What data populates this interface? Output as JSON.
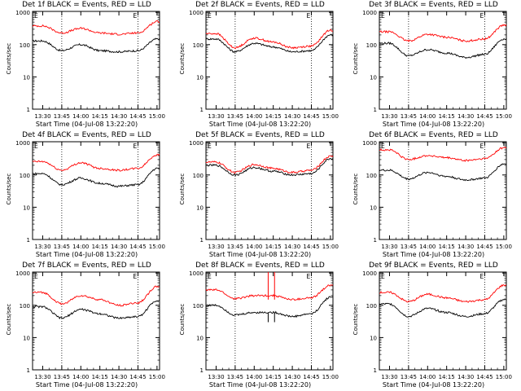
{
  "layout_title": "",
  "panel_ylabel": "Counts/sec",
  "panel_xlabel": "Start Time (04-Jul-08 13:22:20)",
  "x_ticks": [
    "13:30",
    "13:45",
    "14:00",
    "14:15",
    "14:30",
    "14:45",
    "15:00"
  ],
  "y_ticks": [
    "1",
    "10",
    "100",
    "1000"
  ],
  "marker_labels": [
    "E",
    "E"
  ],
  "colors": {
    "events": "#000000",
    "lld": "#ff0000"
  },
  "chart_data": [
    {
      "type": "line",
      "title": "Det 1f BLACK = Events, RED = LLD",
      "ylabel": "Counts/sec",
      "xlabel": "Start Time (04-Jul-08 13:22:20)",
      "yscale": "log",
      "ylim": [
        1,
        1000
      ],
      "x_minutes": [
        8,
        23,
        38,
        53,
        68,
        83,
        98
      ],
      "series": [
        {
          "name": "BLACK = Events",
          "values": [
            130,
            65,
            100,
            65,
            60,
            65,
            150
          ]
        },
        {
          "name": "RED = LLD",
          "values": [
            380,
            230,
            320,
            230,
            210,
            230,
            520
          ]
        }
      ]
    },
    {
      "type": "line",
      "title": "Det 2f BLACK = Events, RED = LLD",
      "ylabel": "Counts/sec",
      "xlabel": "Start Time (04-Jul-08 13:22:20)",
      "yscale": "log",
      "ylim": [
        1,
        1000
      ],
      "x_minutes": [
        8,
        23,
        38,
        53,
        68,
        83,
        98
      ],
      "series": [
        {
          "name": "BLACK = Events",
          "values": [
            150,
            60,
            110,
            85,
            60,
            65,
            200
          ]
        },
        {
          "name": "RED = LLD",
          "values": [
            220,
            80,
            160,
            120,
            80,
            90,
            280
          ]
        }
      ]
    },
    {
      "type": "line",
      "title": "Det 3f BLACK = Events, RED = LLD",
      "ylabel": "Counts/sec",
      "xlabel": "Start Time (04-Jul-08 13:22:20)",
      "yscale": "log",
      "ylim": [
        1,
        1000
      ],
      "x_minutes": [
        8,
        23,
        38,
        53,
        68,
        83,
        98
      ],
      "series": [
        {
          "name": "BLACK = Events",
          "values": [
            110,
            45,
            70,
            55,
            40,
            50,
            150
          ]
        },
        {
          "name": "RED = LLD",
          "values": [
            250,
            130,
            210,
            170,
            130,
            150,
            400
          ]
        }
      ]
    },
    {
      "type": "line",
      "title": "Det 4f BLACK = Events, RED = LLD",
      "ylabel": "Counts/sec",
      "xlabel": "Start Time (04-Jul-08 13:22:20)",
      "yscale": "log",
      "ylim": [
        1,
        1000
      ],
      "x_minutes": [
        8,
        23,
        38,
        53,
        68,
        83,
        98
      ],
      "series": [
        {
          "name": "BLACK = Events",
          "values": [
            110,
            50,
            80,
            55,
            45,
            50,
            160
          ]
        },
        {
          "name": "RED = LLD",
          "values": [
            260,
            140,
            240,
            160,
            140,
            160,
            420
          ]
        }
      ]
    },
    {
      "type": "line",
      "title": "Det 5f BLACK = Events, RED = LLD",
      "ylabel": "Counts/sec",
      "xlabel": "Start Time (04-Jul-08 13:22:20)",
      "yscale": "log",
      "ylim": [
        1,
        1000
      ],
      "x_minutes": [
        8,
        23,
        38,
        53,
        68,
        83,
        98
      ],
      "series": [
        {
          "name": "BLACK = Events",
          "values": [
            200,
            100,
            170,
            130,
            100,
            110,
            320
          ]
        },
        {
          "name": "RED = LLD",
          "values": [
            250,
            120,
            210,
            160,
            120,
            140,
            380
          ]
        }
      ]
    },
    {
      "type": "line",
      "title": "Det 6f BLACK = Events, RED = LLD",
      "ylabel": "Counts/sec",
      "xlabel": "Start Time (04-Jul-08 13:22:20)",
      "yscale": "log",
      "ylim": [
        1,
        1000
      ],
      "x_minutes": [
        8,
        23,
        38,
        53,
        68,
        83,
        98
      ],
      "series": [
        {
          "name": "BLACK = Events",
          "values": [
            140,
            75,
            120,
            90,
            70,
            80,
            220
          ]
        },
        {
          "name": "RED = LLD",
          "values": [
            600,
            300,
            400,
            340,
            280,
            320,
            700
          ]
        }
      ]
    },
    {
      "type": "line",
      "title": "Det 7f BLACK = Events, RED = LLD",
      "ylabel": "Counts/sec",
      "xlabel": "Start Time (04-Jul-08 13:22:20)",
      "yscale": "log",
      "ylim": [
        1,
        1000
      ],
      "x_minutes": [
        8,
        23,
        38,
        53,
        68,
        83,
        98
      ],
      "series": [
        {
          "name": "BLACK = Events",
          "values": [
            90,
            40,
            75,
            55,
            40,
            45,
            140
          ]
        },
        {
          "name": "RED = LLD",
          "values": [
            250,
            110,
            200,
            150,
            100,
            120,
            380
          ]
        }
      ]
    },
    {
      "type": "line",
      "title": "Det 8f BLACK = Events, RED = LLD",
      "ylabel": "Counts/sec",
      "xlabel": "Start Time (04-Jul-08 13:22:20)",
      "yscale": "log",
      "ylim": [
        1,
        1000
      ],
      "x_minutes": [
        8,
        23,
        38,
        53,
        68,
        83,
        98
      ],
      "series": [
        {
          "name": "BLACK = Events",
          "values": [
            100,
            50,
            60,
            60,
            45,
            55,
            180
          ]
        },
        {
          "name": "RED = LLD",
          "values": [
            300,
            160,
            200,
            200,
            150,
            170,
            420
          ]
        }
      ]
    },
    {
      "type": "line",
      "title": "Det 9f BLACK = Events, RED = LLD",
      "ylabel": "Counts/sec",
      "xlabel": "Start Time (04-Jul-08 13:22:20)",
      "yscale": "log",
      "ylim": [
        1,
        1000
      ],
      "x_minutes": [
        8,
        23,
        38,
        53,
        68,
        83,
        98
      ],
      "series": [
        {
          "name": "BLACK = Events",
          "values": [
            110,
            45,
            80,
            60,
            45,
            55,
            150
          ]
        },
        {
          "name": "RED = LLD",
          "values": [
            250,
            130,
            220,
            170,
            130,
            150,
            420
          ]
        }
      ]
    }
  ]
}
